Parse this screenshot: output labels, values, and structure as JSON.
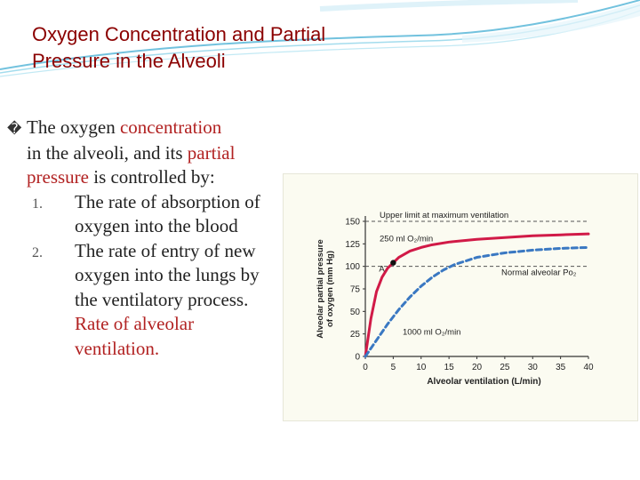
{
  "slide": {
    "title_line1": "Oxygen Concentration and Partial",
    "title_line2": "Pressure in the Alveoli",
    "bullet_glyph": "�",
    "intro": {
      "part1": "The oxygen ",
      "part2": "concentration",
      "part3": "in the alveoli, and its ",
      "part4": "partial",
      "part5": "pressure",
      "part6": "  is controlled by:"
    },
    "items": [
      {
        "num": "1.",
        "text": "The rate of absorption of oxygen into the blood"
      },
      {
        "num": "2.",
        "text": "The rate of entry of new oxygen into the lungs by the ventilatory process.",
        "highlight": "Rate of alveolar ventilation."
      }
    ],
    "colors": {
      "title": "#8b0000",
      "highlight": "#b22222",
      "curve_upper": "#d11a47",
      "curve_lower": "#3a78c2"
    }
  },
  "chart_data": {
    "type": "line",
    "xlabel": "Alveolar ventilation (L/min)",
    "ylabel_line1": "Alveolar partial pressure",
    "ylabel_line2": "of oxygen (mm Hg)",
    "xlim": [
      0,
      40
    ],
    "ylim": [
      0,
      150
    ],
    "xticks": [
      "0",
      "5",
      "10",
      "15",
      "20",
      "25",
      "30",
      "35",
      "40"
    ],
    "yticks": [
      "0",
      "25",
      "50",
      "75",
      "100",
      "125",
      "150"
    ],
    "reference_lines": [
      {
        "y": 150,
        "label": "Upper limit at maximum ventilation"
      },
      {
        "y": 100,
        "label": "Normal alveolar Po₂"
      }
    ],
    "series": [
      {
        "name": "250 ml O₂/min",
        "style": "solid",
        "x": [
          0,
          1,
          2,
          3,
          4,
          5,
          6,
          8,
          10,
          12,
          15,
          20,
          25,
          30,
          35,
          40
        ],
        "y": [
          0,
          42,
          72,
          88,
          98,
          104,
          110,
          117,
          121,
          124,
          127,
          130,
          132,
          134,
          135,
          136
        ]
      },
      {
        "name": "1000 ml O₂/min",
        "style": "dashed",
        "x": [
          0,
          2,
          4,
          6,
          8,
          10,
          12,
          14,
          16,
          18,
          20,
          22,
          25,
          30,
          35,
          40
        ],
        "y": [
          0,
          18,
          36,
          52,
          66,
          78,
          88,
          96,
          102,
          106,
          110,
          112,
          115,
          118,
          120,
          121
        ]
      }
    ],
    "points": [
      {
        "x": 5,
        "y": 104,
        "label": "A"
      }
    ]
  }
}
